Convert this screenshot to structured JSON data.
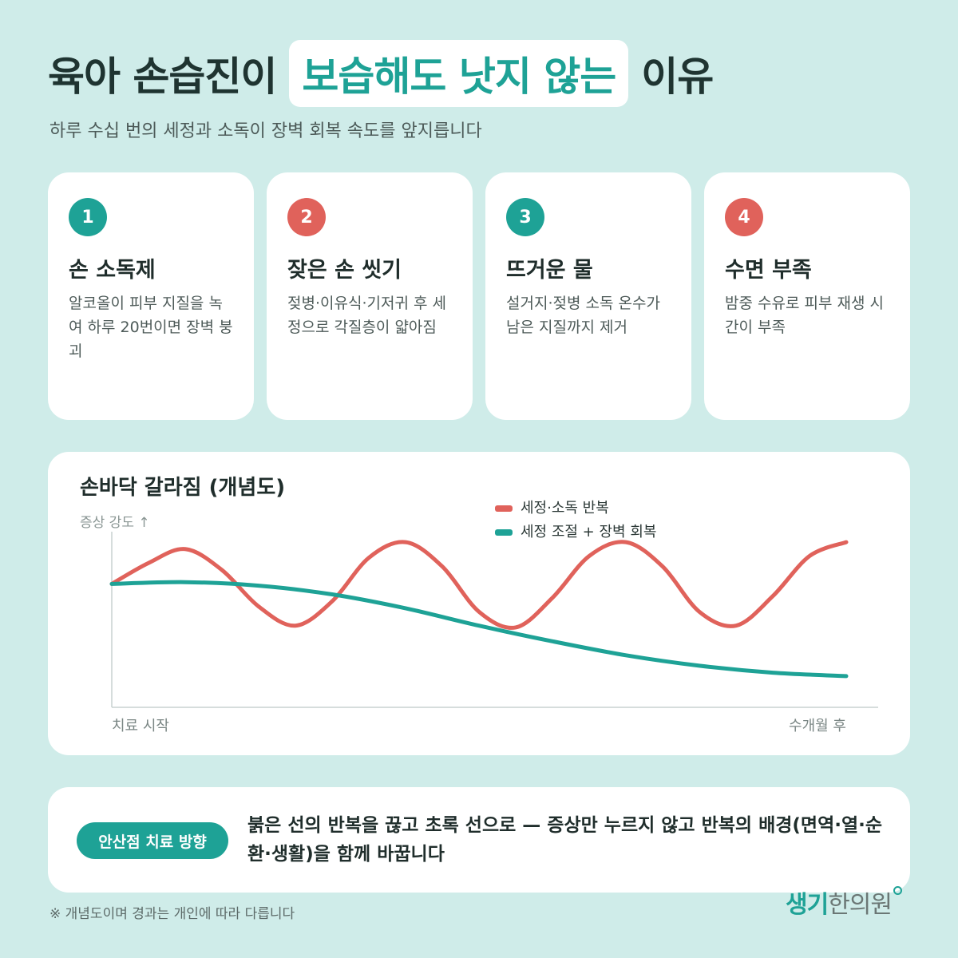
{
  "header": {
    "title_prefix": "육아 손습진이",
    "title_highlight": "보습해도 낫지 않는",
    "title_suffix": "이유",
    "subtitle": "하루 수십 번의 세정과 소독이 장벽 회복 속도를 앞지릅니다"
  },
  "cards": [
    {
      "number": "1",
      "title": "손 소독제",
      "desc": "알코올이 피부 지질을 녹여 하루 20번이면 장벽 붕괴",
      "color": "#1ea296"
    },
    {
      "number": "2",
      "title": "잦은 손 씻기",
      "desc": "젖병·이유식·기저귀 후 세정으로 각질층이 얇아짐",
      "color": "#e0625b"
    },
    {
      "number": "3",
      "title": "뜨거운 물",
      "desc": "설거지·젖병 소독 온수가 남은 지질까지 제거",
      "color": "#1ea296"
    },
    {
      "number": "4",
      "title": "수면 부족",
      "desc": "밤중 수유로 피부 재생 시간이 부족",
      "color": "#e0625b"
    }
  ],
  "chart_data": {
    "type": "line",
    "title": "손바닥 갈라짐 (개념도)",
    "ylabel": "증상 강도 ↑",
    "x_start_label": "치료 시작",
    "x_end_label": "수개월 후",
    "ylim": [
      0,
      10
    ],
    "legend_position": "top-right",
    "series": [
      {
        "name": "세정·소독 반복",
        "color": "#e0625b",
        "x": [
          0.0,
          0.05,
          0.1,
          0.15,
          0.2,
          0.25,
          0.3,
          0.35,
          0.4,
          0.45,
          0.5,
          0.55,
          0.6,
          0.65,
          0.7,
          0.75,
          0.8,
          0.85,
          0.9,
          0.95,
          1.0
        ],
        "values": [
          7.0,
          8.2,
          9.0,
          7.8,
          5.7,
          4.6,
          6.0,
          8.5,
          9.4,
          8.0,
          5.4,
          4.5,
          6.2,
          8.6,
          9.4,
          8.0,
          5.4,
          4.6,
          6.3,
          8.6,
          9.4
        ]
      },
      {
        "name": "세정 조절 + 장벽 회복",
        "color": "#1ea296",
        "x": [
          0.0,
          0.1,
          0.2,
          0.3,
          0.4,
          0.5,
          0.6,
          0.7,
          0.8,
          0.9,
          1.0
        ],
        "values": [
          7.0,
          7.1,
          6.9,
          6.4,
          5.6,
          4.6,
          3.7,
          2.9,
          2.3,
          1.9,
          1.7
        ]
      }
    ]
  },
  "bottom": {
    "pill_label": "안산점 치료 방향",
    "text": "붉은 선의 반복을 끊고 초록 선으로 — 증상만 누르지 않고 반복의 배경(면역·열·순환·생활)을 함께 바꿉니다"
  },
  "footnote": "※ 개념도이며 경과는 개인에 따라 다릅니다",
  "logo": {
    "accent": "생기",
    "rest": "한의원"
  }
}
